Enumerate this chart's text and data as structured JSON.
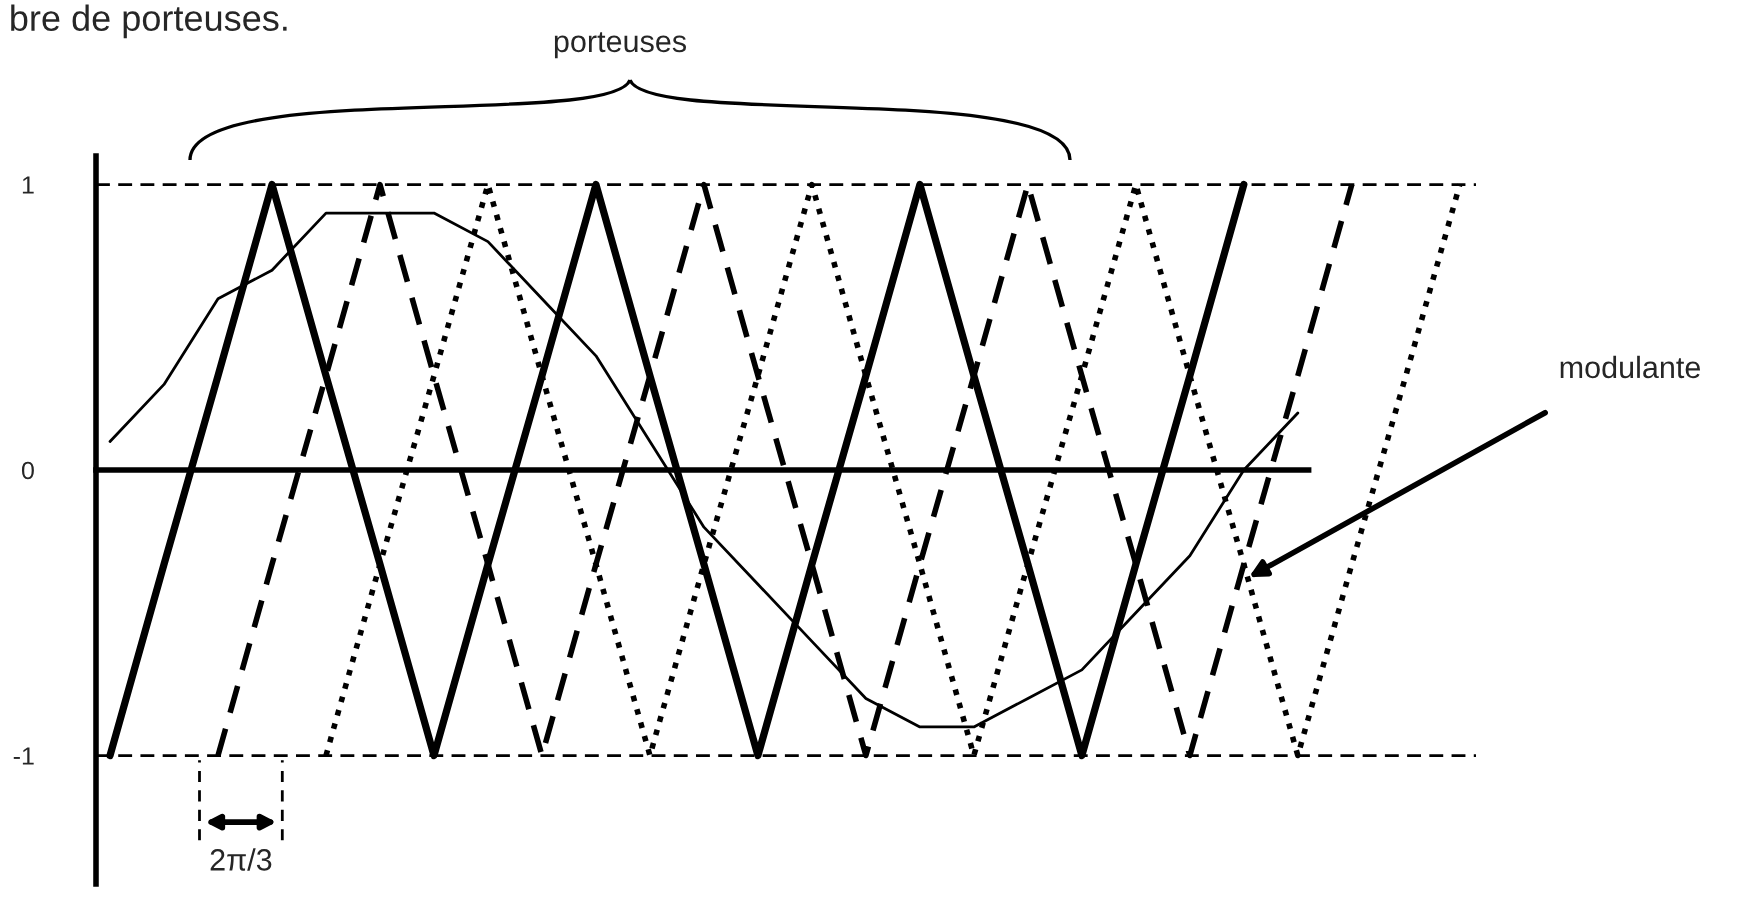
{
  "chart_data": {
    "type": "line",
    "title": "bre de porteuses.",
    "annotations": [
      "porteuses",
      "modulante",
      "2π/3"
    ],
    "categories": [
      null,
      null,
      null,
      null,
      null,
      null,
      null,
      null,
      null,
      null,
      null,
      null,
      null,
      null,
      null,
      null,
      null,
      null,
      null,
      null,
      null,
      null,
      null,
      null,
      null,
      null
    ],
    "ylim": [
      -1.45,
      1.1
    ],
    "yticks": [
      1,
      0,
      -1
    ],
    "tick_labels": "y",
    "grid": false,
    "legend": false,
    "ref_lines": [
      {
        "axis": "y",
        "value": 1,
        "label": null,
        "color": "#000000",
        "line_style": "dashed"
      },
      {
        "axis": "y",
        "value": -1,
        "label": null,
        "color": "#000000",
        "line_style": "dashed"
      }
    ],
    "series": [
      {
        "color": "#000000",
        "line_style": "solid",
        "values": [
          -1,
          -0.33,
          0.33,
          1,
          0.33,
          -0.33,
          -1,
          -0.33,
          0.33,
          1,
          0.33,
          -0.33,
          -1,
          -0.33,
          0.33,
          1,
          0.33,
          -0.33,
          -1,
          -0.33,
          0.33,
          1,
          null,
          null,
          null,
          null
        ]
      },
      {
        "color": "#000000",
        "line_style": "dashed",
        "values": [
          null,
          null,
          -1,
          -0.33,
          0.33,
          1,
          0.33,
          -0.33,
          -1,
          -0.33,
          0.33,
          1,
          0.33,
          -0.33,
          -1,
          -0.33,
          0.33,
          1,
          0.33,
          -0.33,
          -1,
          -0.33,
          0.33,
          1,
          null,
          null
        ]
      },
      {
        "color": "#000000",
        "line_style": "dotted",
        "values": [
          null,
          null,
          null,
          null,
          -1,
          -0.33,
          0.33,
          1,
          0.33,
          -0.33,
          -1,
          -0.33,
          0.33,
          1,
          0.33,
          -0.33,
          -1,
          -0.33,
          0.33,
          1,
          0.33,
          -0.33,
          -1,
          -0.33,
          0.33,
          1
        ]
      },
      {
        "color": "#000000",
        "line_style": "solid",
        "values": [
          0.1,
          0.3,
          0.6,
          0.7,
          0.9,
          0.9,
          0.9,
          0.8,
          0.6,
          0.4,
          0.1,
          -0.2,
          -0.4,
          -0.6,
          -0.8,
          -0.9,
          -0.9,
          -0.8,
          -0.7,
          -0.5,
          -0.3,
          0.0,
          0.2,
          null,
          null,
          null
        ]
      }
    ]
  }
}
